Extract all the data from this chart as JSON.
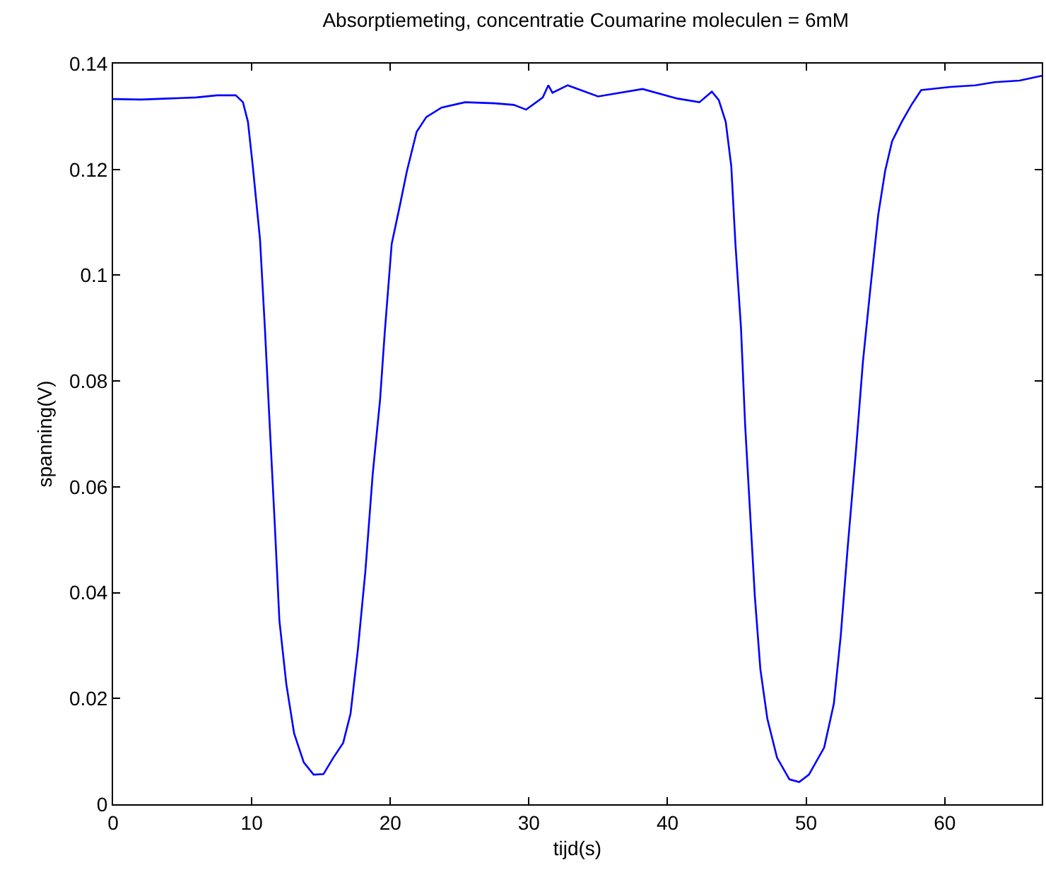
{
  "chart_data": {
    "type": "line",
    "title": "Absorptiemeting, concentratie Coumarine moleculen = 6mM",
    "xlabel": "tijd(s)",
    "ylabel": "spanning(V)",
    "xlim": [
      0,
      67
    ],
    "ylim": [
      0,
      0.14
    ],
    "xticks": [
      0,
      10,
      20,
      30,
      40,
      50,
      60
    ],
    "yticks": [
      0,
      0.02,
      0.04,
      0.06,
      0.08,
      0.1,
      0.12,
      0.14
    ],
    "marker": "none",
    "line_style": "solid",
    "series": [
      {
        "color": "#0000ff",
        "x": [
          0,
          2,
          4,
          6,
          7.5,
          8.85,
          9.37,
          9.73,
          10.08,
          10.6,
          10.95,
          11.3,
          11.66,
          12.0,
          12.5,
          13.06,
          13.76,
          14.47,
          15.18,
          15.89,
          16.6,
          17.13,
          17.66,
          18.2,
          18.73,
          19.26,
          19.6,
          20.1,
          20.7,
          21.2,
          21.9,
          22.6,
          23.7,
          25.4,
          27.5,
          28.9,
          29.8,
          31.0,
          31.4,
          31.7,
          32.8,
          34.99,
          38.2,
          40.7,
          42.3,
          43.2,
          43.7,
          44.2,
          44.6,
          44.9,
          45.3,
          45.6,
          46.0,
          46.3,
          46.7,
          47.2,
          47.9,
          48.8,
          49.5,
          50.2,
          51.3,
          52.0,
          52.5,
          53.0,
          53.6,
          54.1,
          54.6,
          55.2,
          55.7,
          56.2,
          56.9,
          57.6,
          58.3,
          60.4,
          62.2,
          63.6,
          65.4,
          67.0
        ],
        "values": [
          0.1333,
          0.1332,
          0.1334,
          0.1336,
          0.134,
          0.134,
          0.1327,
          0.129,
          0.1206,
          0.1068,
          0.0901,
          0.0717,
          0.0532,
          0.0347,
          0.0227,
          0.0134,
          0.0079,
          0.0056,
          0.0057,
          0.0088,
          0.0116,
          0.0171,
          0.0292,
          0.044,
          0.0624,
          0.0764,
          0.0892,
          0.1059,
          0.1133,
          0.1197,
          0.1271,
          0.1299,
          0.1317,
          0.1327,
          0.1325,
          0.1322,
          0.1313,
          0.1336,
          0.1359,
          0.1345,
          0.1359,
          0.1338,
          0.1352,
          0.1334,
          0.1327,
          0.1347,
          0.1331,
          0.129,
          0.1206,
          0.1059,
          0.0901,
          0.0717,
          0.0532,
          0.0393,
          0.0255,
          0.0162,
          0.0088,
          0.0047,
          0.0042,
          0.0056,
          0.0107,
          0.019,
          0.0319,
          0.0486,
          0.067,
          0.0837,
          0.0966,
          0.1114,
          0.1197,
          0.1253,
          0.129,
          0.1322,
          0.135,
          0.1356,
          0.1359,
          0.1365,
          0.1368,
          0.1377
        ]
      }
    ]
  }
}
